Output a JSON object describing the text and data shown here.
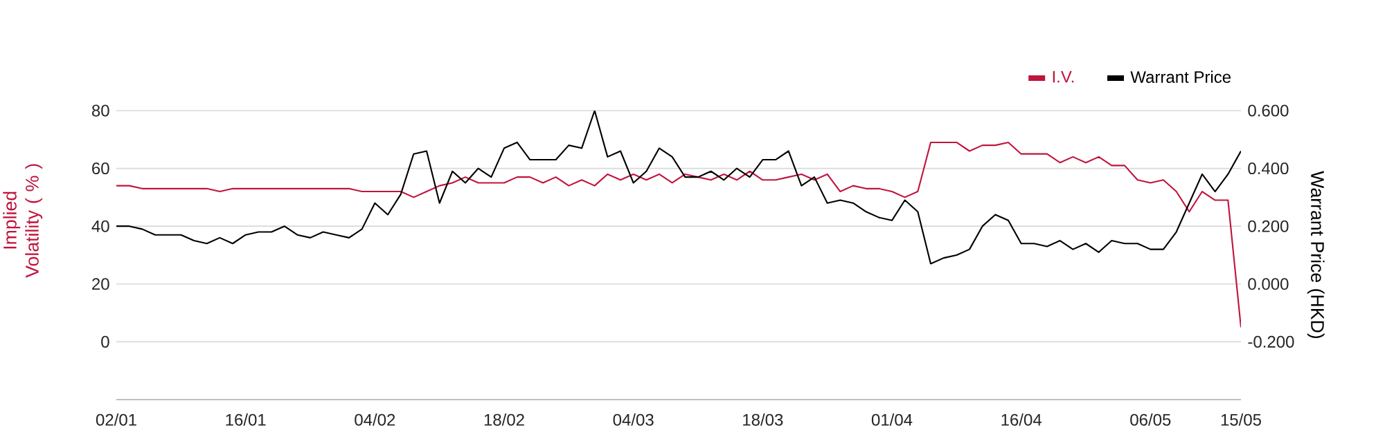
{
  "chart_data": {
    "type": "line",
    "categories": [
      "02/01",
      null,
      null,
      null,
      null,
      null,
      null,
      null,
      null,
      null,
      "16/01",
      null,
      null,
      null,
      null,
      null,
      null,
      null,
      null,
      null,
      "04/02",
      null,
      null,
      null,
      null,
      null,
      null,
      null,
      null,
      null,
      "18/02",
      null,
      null,
      null,
      null,
      null,
      null,
      null,
      null,
      null,
      "04/03",
      null,
      null,
      null,
      null,
      null,
      null,
      null,
      null,
      null,
      "18/03",
      null,
      null,
      null,
      null,
      null,
      null,
      null,
      null,
      null,
      "01/04",
      null,
      null,
      null,
      null,
      null,
      null,
      null,
      null,
      null,
      "16/04",
      null,
      null,
      null,
      null,
      null,
      null,
      null,
      null,
      null,
      "06/05",
      null,
      null,
      null,
      null,
      null,
      null,
      "15/05"
    ],
    "series": [
      {
        "name": "I.V.",
        "color": "#c0143c",
        "values": [
          54,
          54,
          53,
          53,
          53,
          53,
          53,
          53,
          52,
          53,
          53,
          53,
          53,
          53,
          53,
          53,
          53,
          53,
          53,
          52,
          52,
          52,
          52,
          50,
          52,
          54,
          55,
          57,
          55,
          55,
          55,
          57,
          57,
          55,
          57,
          54,
          56,
          54,
          58,
          56,
          58,
          56,
          58,
          55,
          58,
          57,
          56,
          58,
          56,
          59,
          56,
          56,
          57,
          58,
          56,
          58,
          52,
          54,
          53,
          53,
          52,
          50,
          52,
          69,
          69,
          69,
          66,
          68,
          68,
          69,
          65,
          65,
          65,
          62,
          64,
          62,
          64,
          61,
          61,
          56,
          55,
          56,
          52,
          45,
          52,
          49,
          49,
          5
        ]
      },
      {
        "name": "Warrant Price",
        "color": "#000000",
        "axis": "y2",
        "values": [
          0.2,
          0.2,
          0.19,
          0.17,
          0.17,
          0.17,
          0.15,
          0.14,
          0.16,
          0.14,
          0.17,
          0.18,
          0.18,
          0.2,
          0.17,
          0.16,
          0.18,
          0.17,
          0.16,
          0.19,
          0.28,
          0.24,
          0.31,
          0.45,
          0.46,
          0.28,
          0.39,
          0.35,
          0.4,
          0.37,
          0.47,
          0.49,
          0.43,
          0.43,
          0.43,
          0.48,
          0.47,
          0.6,
          0.44,
          0.46,
          0.35,
          0.39,
          0.47,
          0.44,
          0.37,
          0.37,
          0.39,
          0.36,
          0.4,
          0.37,
          0.43,
          0.43,
          0.46,
          0.34,
          0.37,
          0.28,
          0.29,
          0.28,
          0.25,
          0.23,
          0.22,
          0.29,
          0.25,
          0.07,
          0.09,
          0.1,
          0.12,
          0.2,
          0.24,
          0.22,
          0.14,
          0.14,
          0.13,
          0.15,
          0.12,
          0.14,
          0.11,
          0.15,
          0.14,
          0.14,
          0.12,
          0.12,
          0.18,
          0.28,
          0.38,
          0.32,
          0.38,
          0.46
        ]
      }
    ],
    "ylabel": "Implied Volatility ( % )",
    "y2label": "Warrant Price (HKD)",
    "ylim": [
      -20,
      80
    ],
    "yticks": [
      0,
      20,
      40,
      60,
      80
    ],
    "y2lim": [
      -0.4,
      0.6
    ],
    "y2ticks": [
      {
        "value": -0.2,
        "label": "-0.200"
      },
      {
        "value": 0,
        "label": "0.000"
      },
      {
        "value": 0.2,
        "label": "0.200"
      },
      {
        "value": 0.4,
        "label": "0.400"
      },
      {
        "value": 0.6,
        "label": "0.600"
      }
    ],
    "grid": "y",
    "legend": "top right",
    "marker": "none",
    "line_style": "solid"
  }
}
